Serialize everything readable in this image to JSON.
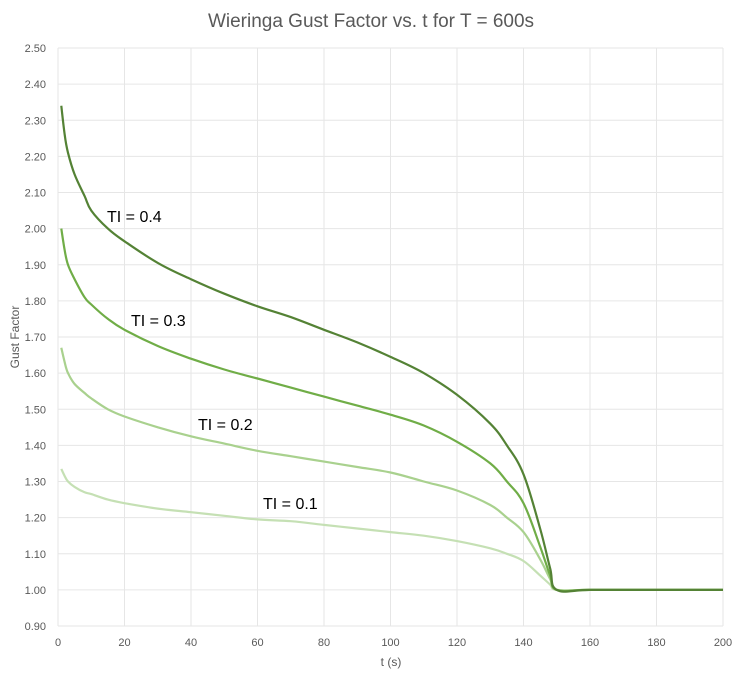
{
  "chart_data": {
    "type": "line",
    "title": "Wieringa Gust Factor vs. t for T = 600s",
    "xlabel": "t (s)",
    "ylabel": "Gust Factor",
    "xlim": [
      0,
      200
    ],
    "ylim": [
      0.9,
      2.5
    ],
    "xticks": [
      0,
      20,
      40,
      60,
      80,
      100,
      120,
      140,
      160,
      180,
      200
    ],
    "yticks": [
      0.9,
      1.0,
      1.1,
      1.2,
      1.3,
      1.4,
      1.5,
      1.6,
      1.7,
      1.8,
      1.9,
      2.0,
      2.1,
      2.2,
      2.3,
      2.4,
      2.5
    ],
    "grid": true,
    "x": [
      1,
      2,
      3,
      5,
      8,
      10,
      15,
      20,
      30,
      40,
      50,
      60,
      70,
      80,
      90,
      100,
      110,
      120,
      130,
      135,
      140,
      145,
      148,
      150,
      160,
      180,
      200
    ],
    "series": [
      {
        "name": "TI = 0.4",
        "label": "TI = 0.4",
        "color": "#548235",
        "values": [
          2.34,
          2.26,
          2.21,
          2.15,
          2.09,
          2.05,
          2.0,
          1.965,
          1.905,
          1.86,
          1.82,
          1.785,
          1.755,
          1.72,
          1.685,
          1.645,
          1.6,
          1.54,
          1.46,
          1.4,
          1.32,
          1.17,
          1.06,
          1.0,
          1.0,
          1.0,
          1.0
        ]
      },
      {
        "name": "TI = 0.3",
        "label": "TI = 0.3",
        "color": "#70AD47",
        "values": [
          2.0,
          1.94,
          1.9,
          1.86,
          1.81,
          1.79,
          1.75,
          1.72,
          1.675,
          1.64,
          1.61,
          1.585,
          1.56,
          1.535,
          1.51,
          1.485,
          1.455,
          1.41,
          1.35,
          1.3,
          1.24,
          1.12,
          1.04,
          1.0,
          1.0,
          1.0,
          1.0
        ]
      },
      {
        "name": "TI = 0.2",
        "label": "TI = 0.2",
        "color": "#A9D18E",
        "values": [
          1.67,
          1.63,
          1.6,
          1.57,
          1.545,
          1.53,
          1.5,
          1.48,
          1.45,
          1.425,
          1.405,
          1.385,
          1.37,
          1.355,
          1.34,
          1.325,
          1.3,
          1.275,
          1.235,
          1.2,
          1.16,
          1.085,
          1.03,
          1.0,
          1.0,
          1.0,
          1.0
        ]
      },
      {
        "name": "TI = 0.1",
        "label": "TI = 0.1",
        "color": "#C5E0B4",
        "values": [
          1.335,
          1.315,
          1.3,
          1.285,
          1.27,
          1.265,
          1.25,
          1.24,
          1.225,
          1.215,
          1.205,
          1.195,
          1.19,
          1.18,
          1.17,
          1.16,
          1.15,
          1.135,
          1.115,
          1.1,
          1.08,
          1.04,
          1.015,
          1.0,
          1.0,
          1.0,
          1.0
        ]
      }
    ]
  }
}
